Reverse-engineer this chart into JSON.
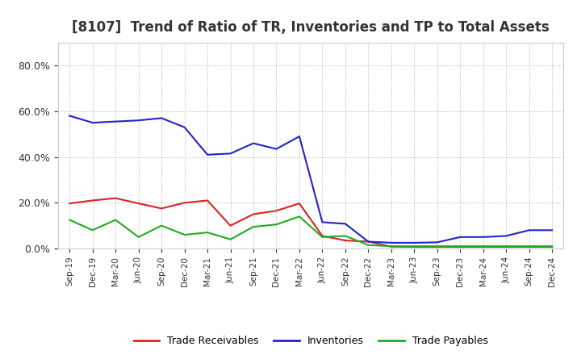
{
  "title": "[8107]  Trend of Ratio of TR, Inventories and TP to Total Assets",
  "x_labels": [
    "Sep-19",
    "Dec-19",
    "Mar-20",
    "Jun-20",
    "Sep-20",
    "Dec-20",
    "Mar-21",
    "Jun-21",
    "Sep-21",
    "Dec-21",
    "Mar-22",
    "Jun-22",
    "Sep-22",
    "Dec-22",
    "Mar-23",
    "Jun-23",
    "Sep-23",
    "Dec-23",
    "Mar-24",
    "Jun-24",
    "Sep-24",
    "Dec-24"
  ],
  "trade_receivables": [
    0.197,
    0.21,
    0.22,
    0.197,
    0.175,
    0.2,
    0.21,
    0.1,
    0.15,
    0.165,
    0.197,
    0.055,
    0.035,
    0.03,
    0.008,
    0.007,
    0.007,
    0.007,
    0.007,
    0.007,
    0.007,
    0.007
  ],
  "inventories": [
    0.58,
    0.55,
    0.555,
    0.56,
    0.57,
    0.53,
    0.41,
    0.415,
    0.46,
    0.435,
    0.49,
    0.115,
    0.108,
    0.03,
    0.025,
    0.025,
    0.027,
    0.05,
    0.05,
    0.055,
    0.08,
    0.08
  ],
  "trade_payables": [
    0.125,
    0.08,
    0.125,
    0.05,
    0.1,
    0.06,
    0.07,
    0.04,
    0.095,
    0.105,
    0.14,
    0.05,
    0.055,
    0.015,
    0.01,
    0.01,
    0.01,
    0.01,
    0.01,
    0.01,
    0.01,
    0.01
  ],
  "color_tr": "#dd2222",
  "color_inv": "#2222cc",
  "color_tp": "#22aa22",
  "ylim": [
    0.0,
    0.9
  ],
  "yticks": [
    0.0,
    0.2,
    0.4,
    0.6,
    0.8
  ],
  "background_color": "#ffffff",
  "grid_color": "#999999",
  "title_fontsize": 12,
  "title_color": "#333333",
  "tick_color": "#333333",
  "legend_labels": [
    "Trade Receivables",
    "Inventories",
    "Trade Payables"
  ]
}
